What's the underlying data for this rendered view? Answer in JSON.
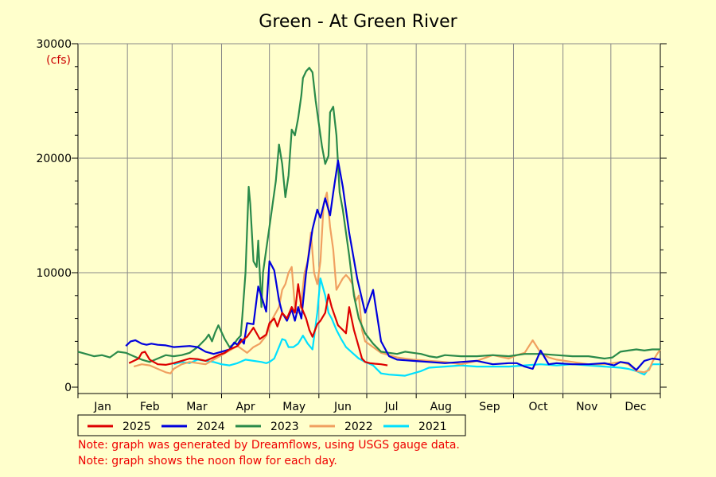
{
  "chart_data": {
    "type": "line",
    "title": "Green - At Green River",
    "ylabel": "",
    "y_unit": "(cfs)",
    "ylim": [
      0,
      30000
    ],
    "y_ticks": [
      0,
      10000,
      20000,
      30000
    ],
    "xlim": [
      0,
      365
    ],
    "x_ticks": [
      {
        "label": "Jan",
        "day": 15.5
      },
      {
        "label": "Feb",
        "day": 45
      },
      {
        "label": "Mar",
        "day": 74.5
      },
      {
        "label": "Apr",
        "day": 105
      },
      {
        "label": "May",
        "day": 135.5
      },
      {
        "label": "Jun",
        "day": 166
      },
      {
        "label": "Jul",
        "day": 196.5
      },
      {
        "label": "Aug",
        "day": 227.5
      },
      {
        "label": "Sep",
        "day": 258
      },
      {
        "label": "Oct",
        "day": 288.5
      },
      {
        "label": "Nov",
        "day": 319
      },
      {
        "label": "Dec",
        "day": 349.5
      }
    ],
    "month_starts": [
      0,
      31,
      59,
      90,
      120,
      151,
      181,
      212,
      243,
      273,
      304,
      334,
      365
    ],
    "grid": true,
    "legend": "bottom",
    "series": [
      {
        "name": "2025",
        "color": "#dd0000",
        "x": [
          32,
          35,
          38,
          40,
          42,
          45,
          50,
          55,
          60,
          65,
          70,
          75,
          80,
          85,
          88,
          92,
          95,
          100,
          103,
          106,
          110,
          114,
          118,
          120,
          123,
          125,
          128,
          131,
          134,
          136,
          138,
          140,
          143,
          145,
          147,
          150,
          152,
          155,
          157,
          159,
          161,
          163,
          166,
          168,
          170,
          173,
          175,
          178,
          180,
          183,
          186,
          190,
          194
        ],
        "y": [
          2100,
          2300,
          2500,
          3000,
          3100,
          2400,
          2000,
          1950,
          2100,
          2300,
          2500,
          2450,
          2300,
          2600,
          2800,
          3000,
          3300,
          3600,
          4100,
          4400,
          5200,
          4200,
          4600,
          5600,
          6000,
          5300,
          6500,
          6000,
          7000,
          6500,
          9000,
          7000,
          6000,
          5000,
          4400,
          5500,
          5800,
          6500,
          8100,
          7000,
          6200,
          5400,
          5000,
          4700,
          7000,
          5000,
          4000,
          2500,
          2200,
          2100,
          2050,
          2000,
          1900
        ]
      },
      {
        "name": "2024",
        "color": "#0000dd",
        "x": [
          30,
          33,
          36,
          40,
          43,
          46,
          50,
          55,
          60,
          65,
          70,
          75,
          80,
          85,
          90,
          95,
          98,
          100,
          102,
          104,
          106,
          110,
          113,
          116,
          118,
          120,
          123,
          126,
          128,
          131,
          134,
          136,
          138,
          140,
          143,
          147,
          150,
          152,
          155,
          158,
          160,
          163,
          166,
          170,
          175,
          180,
          185,
          190,
          195,
          200,
          210,
          220,
          230,
          240,
          250,
          260,
          270,
          275,
          280,
          285,
          290,
          295,
          300,
          310,
          320,
          330,
          333,
          336,
          340,
          345,
          350,
          355,
          360,
          365
        ],
        "y": [
          3600,
          4000,
          4100,
          3800,
          3700,
          3800,
          3700,
          3650,
          3500,
          3550,
          3600,
          3500,
          3100,
          2900,
          3100,
          3300,
          3900,
          3700,
          4200,
          3800,
          5600,
          5500,
          8800,
          7500,
          6600,
          11000,
          10200,
          7600,
          6500,
          5800,
          6800,
          5800,
          7000,
          6000,
          10000,
          13800,
          15500,
          14800,
          16500,
          15000,
          17000,
          19800,
          17500,
          13500,
          9500,
          6500,
          8500,
          4000,
          2700,
          2400,
          2300,
          2200,
          2100,
          2200,
          2300,
          2000,
          2100,
          2100,
          1800,
          1600,
          3200,
          2000,
          2100,
          2000,
          2000,
          2100,
          2000,
          1900,
          2200,
          2100,
          1500,
          2300,
          2500,
          2400
        ]
      },
      {
        "name": "2023",
        "color": "#2a8a4a",
        "x": [
          0,
          5,
          10,
          15,
          20,
          25,
          30,
          35,
          40,
          45,
          50,
          55,
          60,
          65,
          70,
          75,
          80,
          82,
          84,
          86,
          88,
          92,
          95,
          98,
          100,
          102,
          103,
          105,
          107,
          108,
          110,
          112,
          113,
          115,
          116,
          118,
          120,
          122,
          124,
          126,
          128,
          130,
          132,
          134,
          136,
          138,
          140,
          141,
          143,
          145,
          147,
          149,
          151,
          153,
          155,
          157,
          158,
          160,
          162,
          164,
          166,
          168,
          170,
          173,
          176,
          180,
          185,
          190,
          195,
          200,
          205,
          210,
          215,
          220,
          225,
          230,
          240,
          250,
          260,
          270,
          280,
          290,
          300,
          310,
          320,
          330,
          335,
          340,
          345,
          350,
          355,
          360,
          365
        ],
        "y": [
          3100,
          2900,
          2700,
          2800,
          2600,
          3100,
          3000,
          2700,
          2400,
          2200,
          2500,
          2800,
          2700,
          2800,
          3000,
          3500,
          4200,
          4600,
          4000,
          4800,
          5400,
          4200,
          3500,
          3800,
          4200,
          4500,
          6200,
          10000,
          17500,
          16000,
          11000,
          10500,
          12800,
          7000,
          10000,
          12000,
          14000,
          16000,
          18000,
          21200,
          19500,
          16600,
          18500,
          22500,
          22000,
          23500,
          25500,
          27000,
          27600,
          27900,
          27500,
          25000,
          23000,
          21000,
          19500,
          20200,
          24000,
          24500,
          22000,
          17000,
          15500,
          13500,
          11500,
          8000,
          6000,
          4700,
          3800,
          3100,
          3000,
          2900,
          3100,
          3000,
          2900,
          2700,
          2600,
          2800,
          2700,
          2700,
          2800,
          2700,
          2900,
          2900,
          2800,
          2700,
          2700,
          2500,
          2600,
          3100,
          3200,
          3300,
          3200,
          3300,
          3300
        ]
      },
      {
        "name": "2022",
        "color": "#f0a060",
        "x": [
          35,
          40,
          45,
          50,
          55,
          58,
          60,
          65,
          70,
          75,
          80,
          85,
          90,
          95,
          100,
          103,
          106,
          110,
          114,
          118,
          122,
          126,
          128,
          130,
          132,
          134,
          136,
          138,
          140,
          142,
          144,
          146,
          148,
          150,
          152,
          154,
          156,
          158,
          160,
          162,
          164,
          166,
          168,
          170,
          172,
          174,
          176,
          178,
          180,
          185,
          190,
          195,
          200,
          210,
          220,
          230,
          240,
          250,
          260,
          270,
          275,
          280,
          285,
          290,
          295,
          300,
          310,
          320,
          330,
          335,
          340,
          345,
          350,
          355,
          358,
          360,
          363,
          365
        ],
        "y": [
          1800,
          2000,
          1900,
          1600,
          1300,
          1200,
          1600,
          2000,
          2200,
          2100,
          2000,
          2400,
          2800,
          3200,
          3600,
          3300,
          3000,
          3500,
          3800,
          4500,
          6000,
          7000,
          8500,
          9000,
          10000,
          10500,
          7000,
          6500,
          7500,
          10000,
          11000,
          13500,
          10000,
          9000,
          11000,
          16000,
          17000,
          14000,
          12000,
          8500,
          9000,
          9500,
          9800,
          9500,
          9000,
          7500,
          8000,
          5000,
          4000,
          3500,
          3000,
          2800,
          2600,
          2400,
          2300,
          2200,
          2000,
          2300,
          2800,
          2500,
          2800,
          3000,
          4100,
          3000,
          2600,
          2400,
          2200,
          2000,
          2000,
          2100,
          2200,
          2000,
          1400,
          1300,
          1500,
          2200,
          2900,
          3300
        ]
      },
      {
        "name": "2021",
        "color": "#00e0ff",
        "x": [
          60,
          65,
          70,
          75,
          80,
          85,
          90,
          95,
          100,
          105,
          110,
          115,
          118,
          120,
          123,
          126,
          128,
          130,
          132,
          135,
          138,
          141,
          144,
          147,
          150,
          152,
          155,
          157,
          159,
          162,
          165,
          168,
          172,
          176,
          180,
          185,
          190,
          195,
          200,
          205,
          210,
          215,
          220,
          230,
          240,
          250,
          260,
          270,
          280,
          290,
          300,
          310,
          320,
          330,
          340,
          345,
          350,
          355,
          360,
          365
        ],
        "y": [
          2000,
          2200,
          2100,
          2400,
          2300,
          2200,
          2000,
          1900,
          2100,
          2400,
          2300,
          2200,
          2100,
          2200,
          2500,
          3500,
          4200,
          4100,
          3500,
          3500,
          3800,
          4500,
          3800,
          3300,
          6500,
          9500,
          8000,
          6500,
          6000,
          5000,
          4200,
          3500,
          3000,
          2500,
          2200,
          1900,
          1200,
          1100,
          1050,
          1000,
          1200,
          1400,
          1700,
          1800,
          1900,
          1800,
          1800,
          1800,
          1900,
          2000,
          1900,
          2000,
          1900,
          1800,
          1700,
          1600,
          1400,
          1100,
          2000,
          2000
        ]
      }
    ],
    "notes": [
      "Note: graph was generated by Dreamflows, using USGS gauge data.",
      "Note: graph shows the noon flow for each day."
    ]
  }
}
